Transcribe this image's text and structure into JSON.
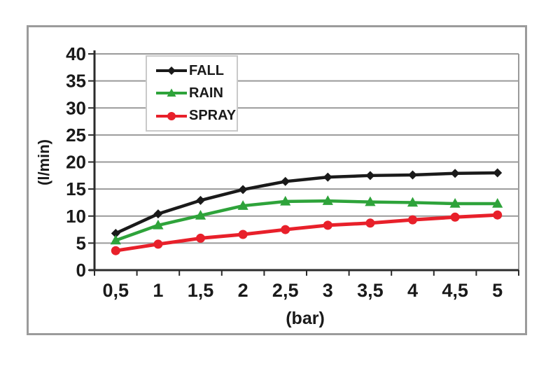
{
  "chart_data": {
    "type": "line",
    "xlabel": "(bar)",
    "ylabel": "(l/min)",
    "categories": [
      "0,5",
      "1",
      "1,5",
      "2",
      "2,5",
      "3",
      "3,5",
      "4",
      "4,5",
      "5"
    ],
    "y_ticks": [
      0,
      5,
      10,
      15,
      20,
      25,
      30,
      35,
      40
    ],
    "ylim": [
      0,
      40
    ],
    "grid": true,
    "legend_position": "top-left-inside",
    "series": [
      {
        "name": "FALL",
        "color": "#1a1a1a",
        "marker": "diamond",
        "values": [
          6.8,
          10.4,
          12.9,
          14.9,
          16.4,
          17.2,
          17.5,
          17.6,
          17.9,
          18.0
        ]
      },
      {
        "name": "RAIN",
        "color": "#2ea33a",
        "marker": "triangle",
        "values": [
          5.5,
          8.3,
          10.1,
          11.9,
          12.7,
          12.8,
          12.6,
          12.5,
          12.3,
          12.3
        ]
      },
      {
        "name": "SPRAY",
        "color": "#e8202a",
        "marker": "circle",
        "values": [
          3.6,
          4.8,
          5.9,
          6.6,
          7.5,
          8.3,
          8.7,
          9.3,
          9.8,
          10.2
        ]
      }
    ],
    "colors": {
      "gridline": "#9a9a9a",
      "axis": "#2b2b2b",
      "tick_text": "#1a1a1a",
      "frame_border": "#9b9b9b"
    }
  }
}
